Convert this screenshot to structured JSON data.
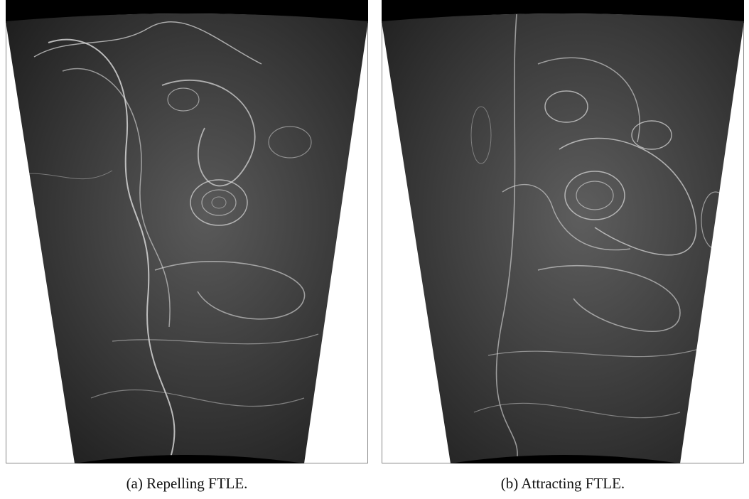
{
  "figure": {
    "panels": [
      {
        "caption": "(a) Repelling FTLE."
      },
      {
        "caption": "(b) Attracting FTLE."
      }
    ]
  }
}
